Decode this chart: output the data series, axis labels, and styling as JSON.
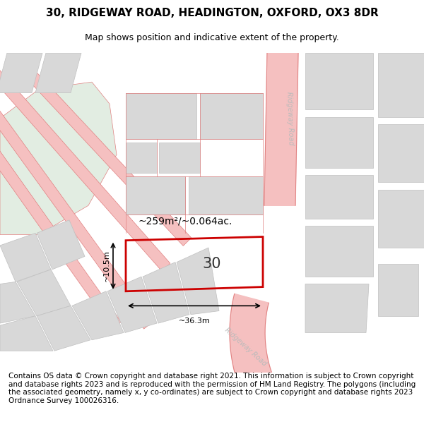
{
  "title_line1": "30, RIDGEWAY ROAD, HEADINGTON, OXFORD, OX3 8DR",
  "title_line2": "Map shows position and indicative extent of the property.",
  "footer_text": "Contains OS data © Crown copyright and database right 2021. This information is subject to Crown copyright and database rights 2023 and is reproduced with the permission of HM Land Registry. The polygons (including the associated geometry, namely x, y co-ordinates) are subject to Crown copyright and database rights 2023 Ordnance Survey 100026316.",
  "property_number": "30",
  "area_label": "~259m²/~0.064ac.",
  "width_label": "~36.3m",
  "height_label": "~10.5m",
  "bg_color": "#ffffff",
  "map_bg": "#f5f5f5",
  "road_color": "#f5c0c0",
  "road_border": "#e08080",
  "building_fill": "#d8d8d8",
  "building_border": "#c0c0c0",
  "green_fill": "#e2ede2",
  "property_border": "#cc0000",
  "road_label_color": "#bbbbbb",
  "title_fontsize": 11,
  "subtitle_fontsize": 9,
  "footer_fontsize": 7.5
}
